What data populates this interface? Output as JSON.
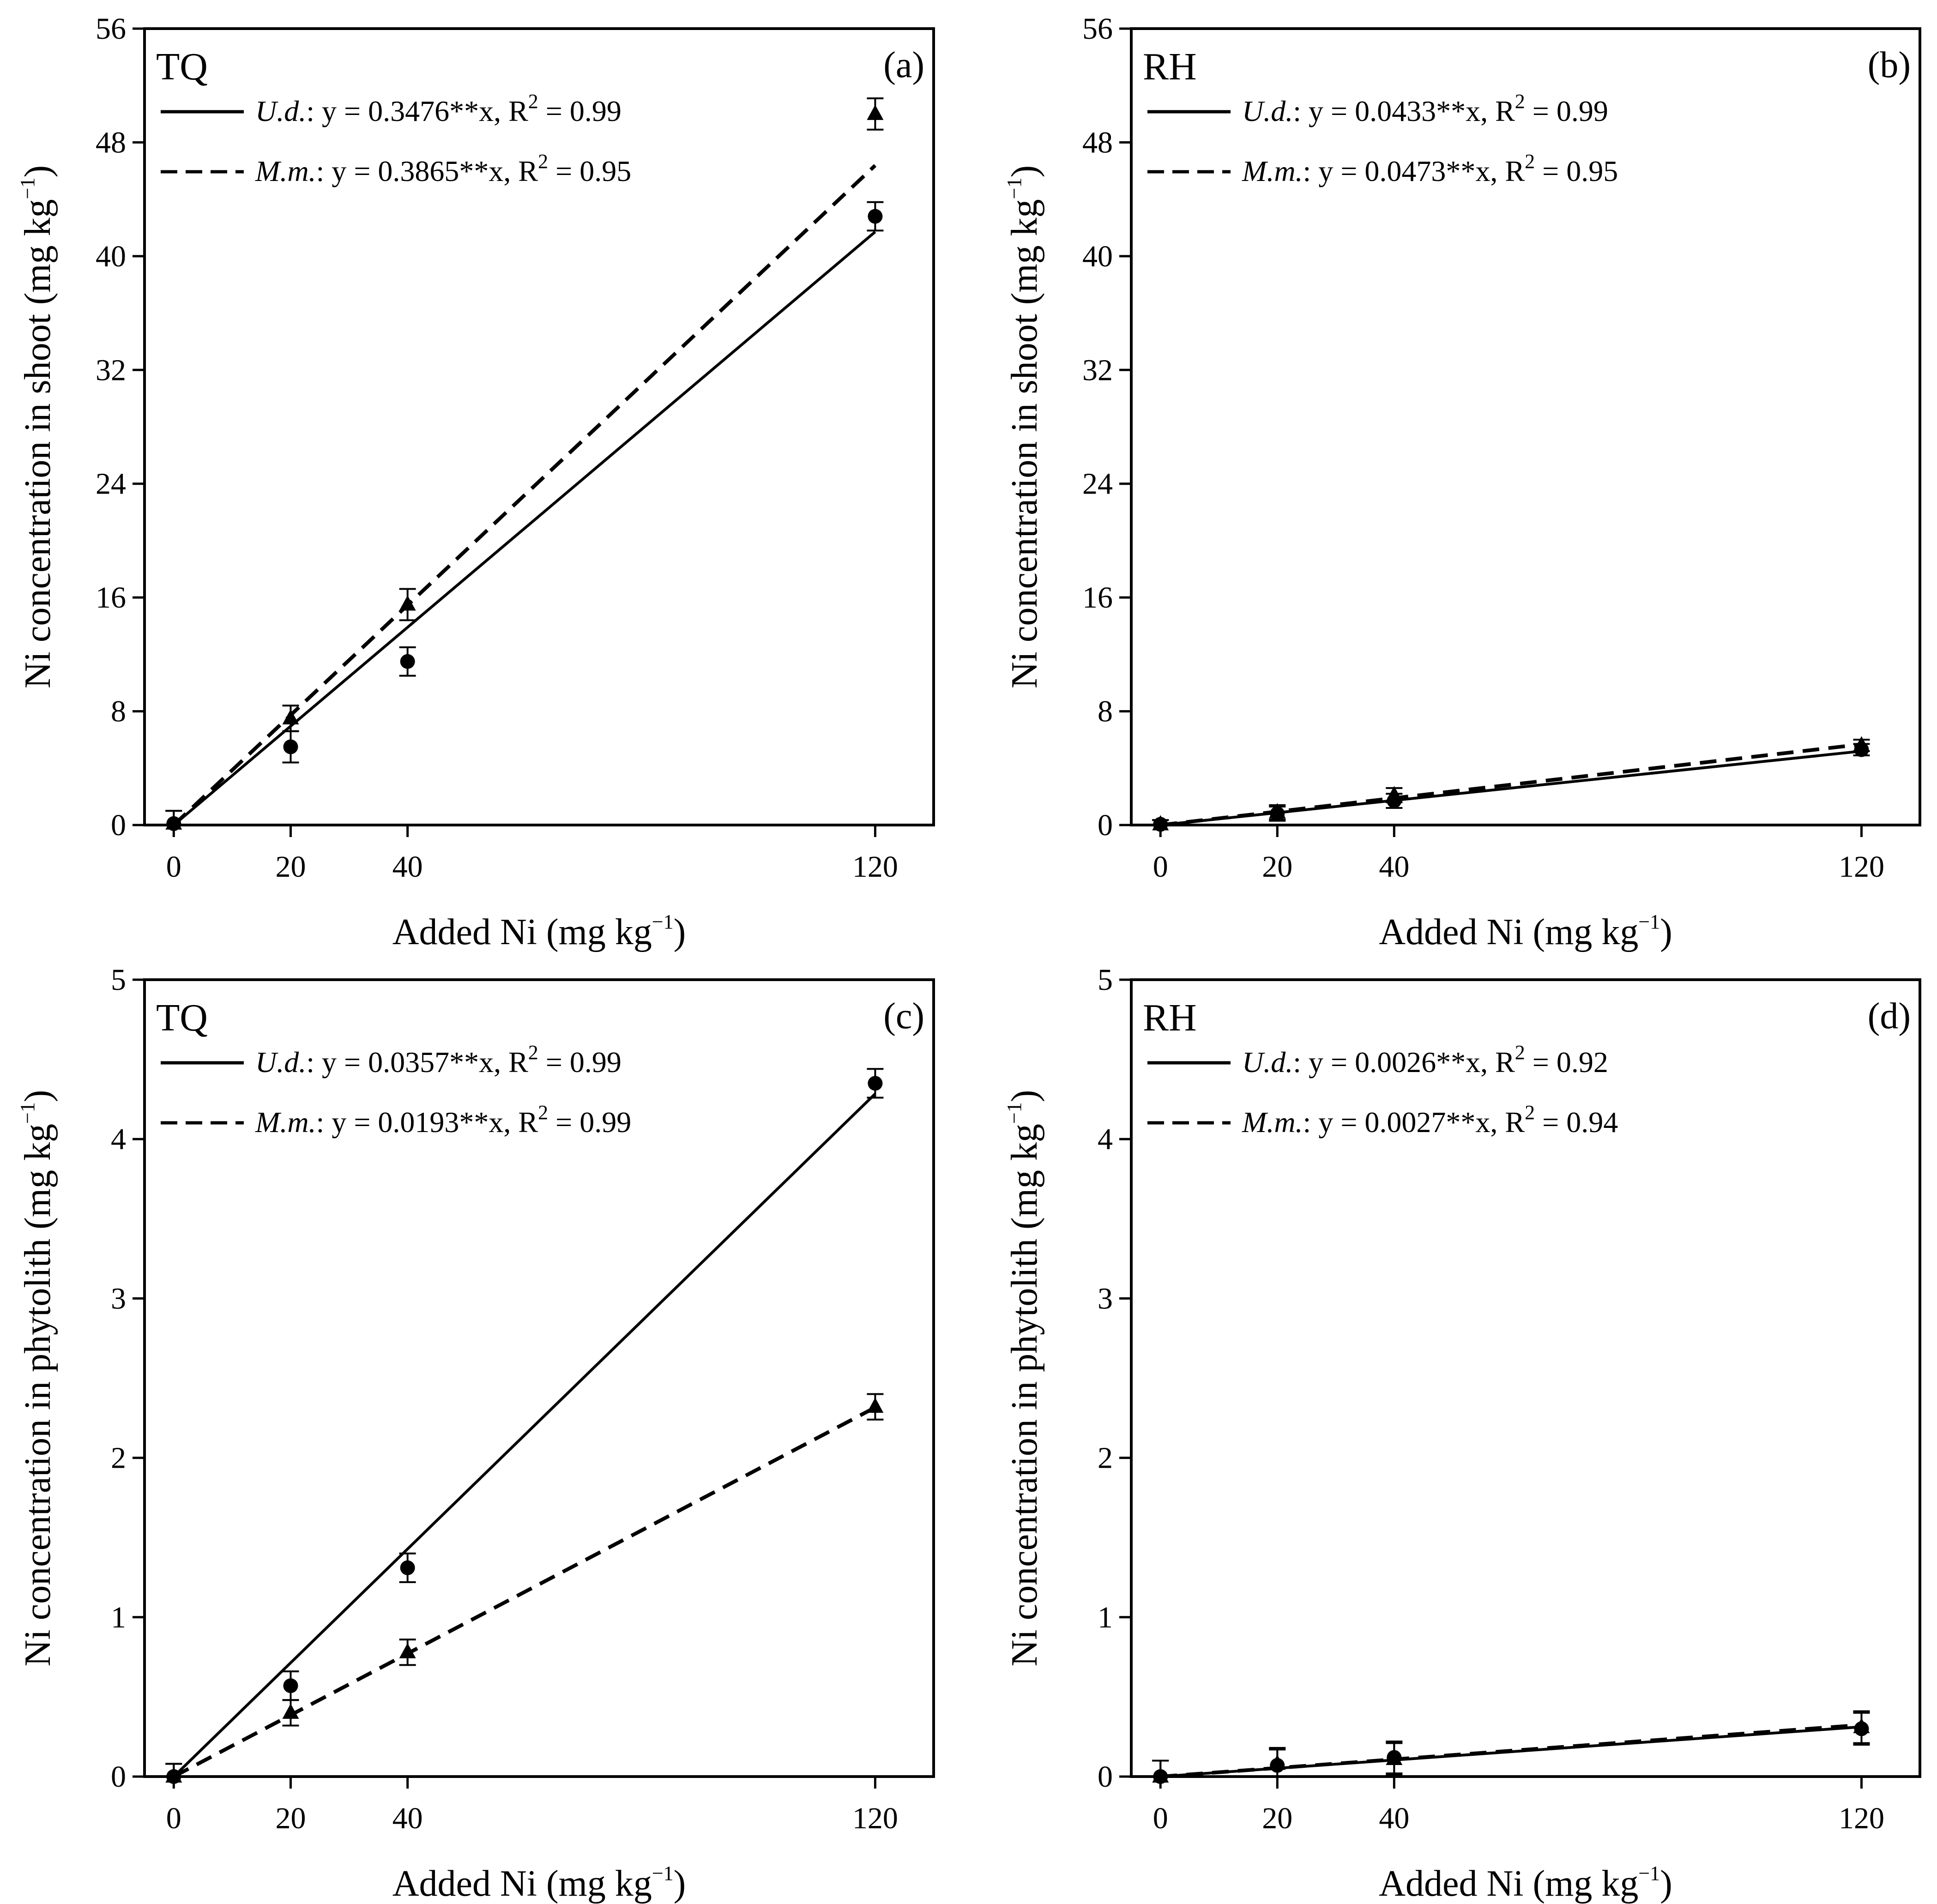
{
  "figure": {
    "colors": {
      "ink": "#000000",
      "background": "#ffffff"
    },
    "legend_series_labels": {
      "ud": "U.d.",
      "mm": "M.m."
    }
  },
  "chart_data": [
    {
      "type": "scatter",
      "panel": "(a)",
      "site": "TQ",
      "xlabel": "Added Ni (mg kg⁻¹)",
      "xlabel_main": "Added Ni (mg kg",
      "xlabel_sup": "−1",
      "xlabel_close": ")",
      "ylabel": "Ni concentration in shoot (mg kg⁻¹)",
      "ylabel_main": "Ni concentration in shoot (mg kg",
      "ylabel_sup": "−1",
      "ylabel_close": ")",
      "xlim": [
        -5,
        130
      ],
      "ylim": [
        0,
        56
      ],
      "x_ticks": [
        0,
        20,
        40,
        120
      ],
      "y_ticks": [
        0,
        8,
        16,
        24,
        32,
        40,
        48,
        56
      ],
      "x": [
        0,
        20,
        40,
        120
      ],
      "series": [
        {
          "name": "U.d.",
          "marker": "circle",
          "line": "solid",
          "values": [
            0.1,
            5.5,
            11.5,
            42.8
          ],
          "errors": [
            0.9,
            1.1,
            1.0,
            1.0
          ],
          "slope": 0.3476,
          "equation": "y = 0.3476**x, R",
          "r2_label": "2",
          "r2_value": " = 0.99"
        },
        {
          "name": "M.m.",
          "marker": "triangle",
          "line": "dashed",
          "values": [
            0.1,
            7.5,
            15.5,
            50.0
          ],
          "errors": [
            0.9,
            0.9,
            1.1,
            1.1
          ],
          "slope": 0.3865,
          "equation": "y = 0.3865**x, R",
          "r2_label": "2",
          "r2_value": " = 0.95"
        }
      ]
    },
    {
      "type": "scatter",
      "panel": "(b)",
      "site": "RH",
      "xlabel": "Added Ni (mg kg⁻¹)",
      "xlabel_main": "Added Ni (mg kg",
      "xlabel_sup": "−1",
      "xlabel_close": ")",
      "ylabel": "Ni concentration in shoot (mg kg⁻¹)",
      "ylabel_main": "Ni concentration in shoot (mg kg",
      "ylabel_sup": "−1",
      "ylabel_close": ")",
      "xlim": [
        -5,
        130
      ],
      "ylim": [
        0,
        56
      ],
      "x_ticks": [
        0,
        20,
        40,
        120
      ],
      "y_ticks": [
        0,
        8,
        16,
        24,
        32,
        40,
        48,
        56
      ],
      "x": [
        0,
        20,
        40,
        120
      ],
      "series": [
        {
          "name": "U.d.",
          "marker": "circle",
          "line": "solid",
          "values": [
            0.05,
            0.8,
            1.7,
            5.3
          ],
          "errors": [
            0.3,
            0.5,
            0.5,
            0.4
          ],
          "slope": 0.0433,
          "equation": "y = 0.0433**x, R",
          "r2_label": "2",
          "r2_value": " = 0.99"
        },
        {
          "name": "M.m.",
          "marker": "triangle",
          "line": "dashed",
          "values": [
            0.05,
            0.9,
            2.1,
            5.6
          ],
          "errors": [
            0.3,
            0.5,
            0.5,
            0.4
          ],
          "slope": 0.0473,
          "equation": "y = 0.0473**x, R",
          "r2_label": "2",
          "r2_value": " = 0.95"
        }
      ]
    },
    {
      "type": "scatter",
      "panel": "(c)",
      "site": "TQ",
      "xlabel": "Added Ni (mg kg⁻¹)",
      "xlabel_main": "Added Ni (mg kg",
      "xlabel_sup": "−1",
      "xlabel_close": ")",
      "ylabel": "Ni concentration in phytolith (mg kg⁻¹)",
      "ylabel_main": "Ni concentration in phytolith (mg kg",
      "ylabel_sup": "−1",
      "ylabel_close": ")",
      "xlim": [
        -5,
        130
      ],
      "ylim": [
        0,
        5
      ],
      "x_ticks": [
        0,
        20,
        40,
        120
      ],
      "y_ticks": [
        0,
        1,
        2,
        3,
        4,
        5
      ],
      "x": [
        0,
        20,
        40,
        120
      ],
      "series": [
        {
          "name": "U.d.",
          "marker": "circle",
          "line": "solid",
          "values": [
            0.0,
            0.57,
            1.31,
            4.35
          ],
          "errors": [
            0.08,
            0.09,
            0.09,
            0.09
          ],
          "slope": 0.0357,
          "equation": "y = 0.0357**x, R",
          "r2_label": "2",
          "r2_value": " = 0.99"
        },
        {
          "name": "M.m.",
          "marker": "triangle",
          "line": "dashed",
          "values": [
            0.0,
            0.4,
            0.78,
            2.32
          ],
          "errors": [
            0.08,
            0.08,
            0.08,
            0.08
          ],
          "slope": 0.0193,
          "equation": "y = 0.0193**x, R",
          "r2_label": "2",
          "r2_value": " = 0.99"
        }
      ]
    },
    {
      "type": "scatter",
      "panel": "(d)",
      "site": "RH",
      "xlabel": "Added Ni (mg kg⁻¹)",
      "xlabel_main": "Added Ni (mg kg",
      "xlabel_sup": "−1",
      "xlabel_close": ")",
      "ylabel": "Ni concentration in phytolith (mg kg⁻¹)",
      "ylabel_main": "Ni concentration in phytolith (mg kg",
      "ylabel_sup": "−1",
      "ylabel_close": ")",
      "xlim": [
        -5,
        130
      ],
      "ylim": [
        0,
        5
      ],
      "x_ticks": [
        0,
        20,
        40,
        120
      ],
      "y_ticks": [
        0,
        1,
        2,
        3,
        4,
        5
      ],
      "x": [
        0,
        20,
        40,
        120
      ],
      "series": [
        {
          "name": "U.d.",
          "marker": "circle",
          "line": "solid",
          "values": [
            0.0,
            0.07,
            0.12,
            0.3
          ],
          "errors": [
            0.1,
            0.1,
            0.1,
            0.1
          ],
          "slope": 0.0026,
          "equation": "y = 0.0026**x, R",
          "r2_label": "2",
          "r2_value": " = 0.92"
        },
        {
          "name": "M.m.",
          "marker": "triangle",
          "line": "dashed",
          "values": [
            0.0,
            0.08,
            0.11,
            0.31
          ],
          "errors": [
            0.1,
            0.1,
            0.1,
            0.1
          ],
          "slope": 0.0027,
          "equation": "y = 0.0027**x, R",
          "r2_label": "2",
          "r2_value": " = 0.94"
        }
      ]
    }
  ]
}
